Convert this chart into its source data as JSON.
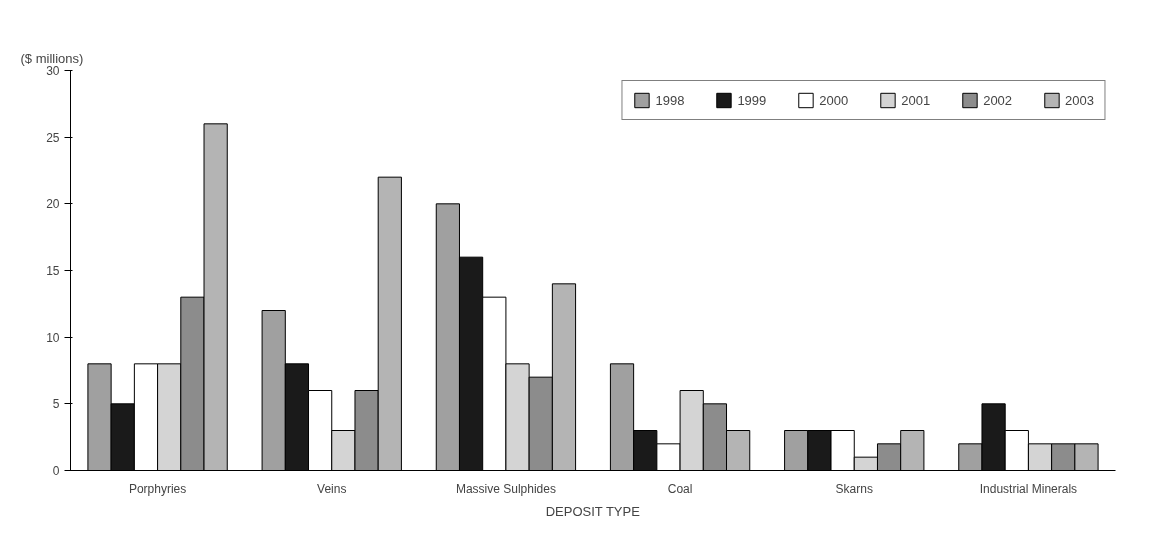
{
  "chart_data": {
    "type": "bar",
    "ylabel": "($ millions)",
    "xlabel": "DEPOSIT TYPE",
    "categories": [
      "Porphyries",
      "Veins",
      "Massive Sulphides",
      "Coal",
      "Skarns",
      "Industrial Minerals"
    ],
    "series": [
      {
        "name": "1998",
        "color": "#a0a0a0",
        "values": [
          8,
          12,
          20,
          8,
          3,
          2
        ]
      },
      {
        "name": "1999",
        "color": "#1a1a1a",
        "values": [
          5,
          8,
          16,
          3,
          3,
          5
        ]
      },
      {
        "name": "2000",
        "color": "#ffffff",
        "values": [
          8,
          6,
          13,
          2,
          3,
          3
        ]
      },
      {
        "name": "2001",
        "color": "#d4d4d4",
        "values": [
          8,
          3,
          8,
          6,
          1,
          2
        ]
      },
      {
        "name": "2002",
        "color": "#8c8c8c",
        "values": [
          13,
          6,
          7,
          5,
          2,
          2
        ]
      },
      {
        "name": "2003",
        "color": "#b4b4b4",
        "values": [
          26,
          22,
          14,
          3,
          3,
          2
        ]
      }
    ],
    "ylim": [
      0,
      30
    ],
    "yticks": [
      0,
      5,
      10,
      15,
      20,
      25,
      30
    ],
    "grid": false,
    "legend": "top right"
  }
}
